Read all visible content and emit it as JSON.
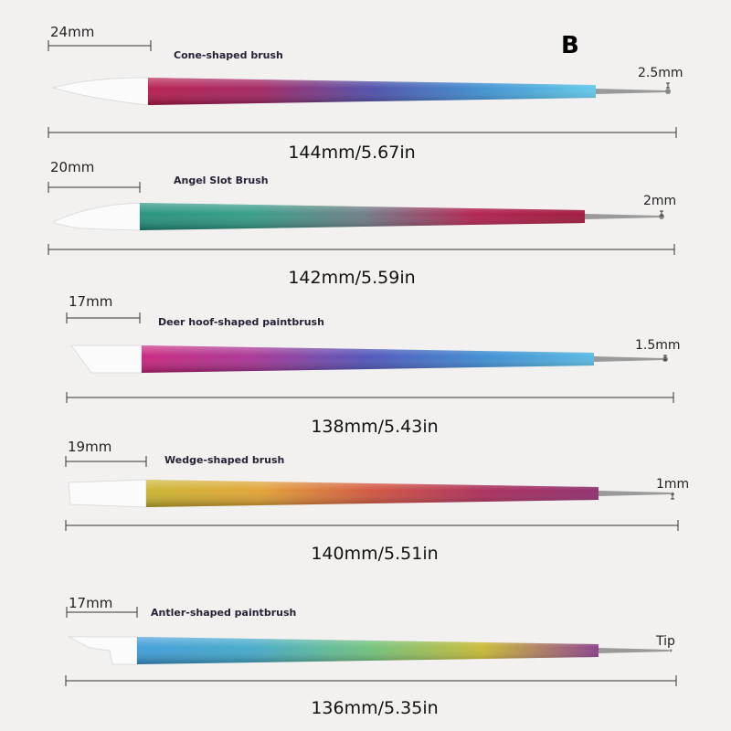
{
  "badge": "B",
  "brushes": [
    {
      "name": "Cone-shaped brush",
      "tip_length": "24mm",
      "ball_size": "2.5mm",
      "total": "144mm/5.67in",
      "tip_shape": "cone",
      "colors": [
        "#b5174a",
        "#a0205e",
        "#4a4aa8",
        "#3a8fd0",
        "#5ec8e8"
      ]
    },
    {
      "name": "Angel Slot Brush",
      "tip_length": "20mm",
      "ball_size": "2mm",
      "total": "142mm/5.59in",
      "tip_shape": "angled",
      "colors": [
        "#1f8f7a",
        "#2f9a82",
        "#6a7a84",
        "#b01c4c",
        "#9c1236"
      ]
    },
    {
      "name": "Deer hoof-shaped paintbrush",
      "tip_length": "17mm",
      "ball_size": "1.5mm",
      "total": "138mm/5.43in",
      "tip_shape": "hoof",
      "colors": [
        "#c8207a",
        "#a43092",
        "#4a50b8",
        "#3a88d0",
        "#52b8e0"
      ]
    },
    {
      "name": "Wedge-shaped brush",
      "tip_length": "19mm",
      "ball_size": "1mm",
      "total": "140mm/5.51in",
      "tip_shape": "wedge",
      "colors": [
        "#c8b22a",
        "#e0a030",
        "#d0503a",
        "#a82858",
        "#8c2a6a"
      ]
    },
    {
      "name": "Antler-shaped paintbrush",
      "tip_length": "17mm",
      "ball_size": "Tip",
      "total": "136mm/5.35in",
      "tip_shape": "antler",
      "colors": [
        "#3a9ad8",
        "#40a8c8",
        "#6cc07a",
        "#c8b830",
        "#8a3a8a"
      ]
    }
  ]
}
